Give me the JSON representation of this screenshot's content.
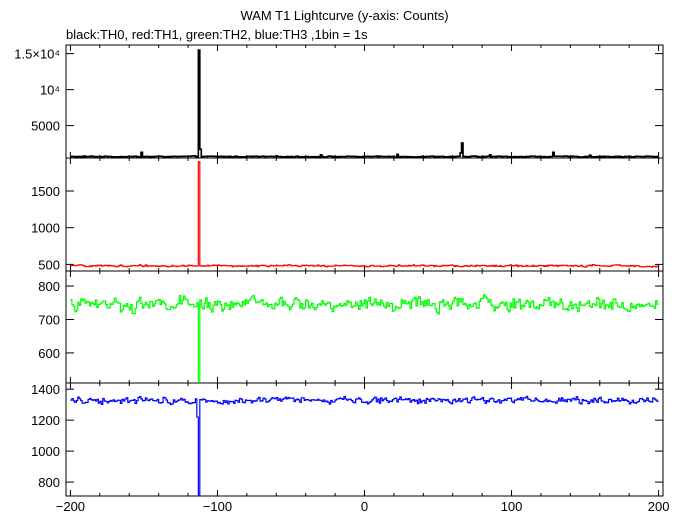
{
  "chart_data": {
    "type": "line",
    "title": "WAM T1 Lightcurve (y-axis: Counts)",
    "subtitle": "black:TH0, red:TH1, green:TH2, blue:TH3 ,1bin = 1s",
    "xlim": [
      -203,
      203
    ],
    "x_ticks": [
      -200,
      -100,
      0,
      100,
      200
    ],
    "x_tick_labels": [
      "−200",
      "−100",
      "0",
      "100",
      "200"
    ],
    "bin_seconds": 1,
    "grid": false,
    "panels": [
      {
        "name": "TH0",
        "color": "#000000",
        "ylim": [
          500,
          16200
        ],
        "y_ticks": [
          5000,
          10000,
          15000
        ],
        "y_tick_labels": [
          "5000",
          "10⁴",
          "1.5×10⁴"
        ],
        "baseline": 700,
        "noise": 90,
        "spikes": [
          {
            "x": -113,
            "y": 15500
          },
          {
            "x": -112,
            "y": 1700
          },
          {
            "x": -152,
            "y": 1300
          },
          {
            "x": 66,
            "y": 2600
          },
          {
            "x": 65,
            "y": 1200
          },
          {
            "x": 128,
            "y": 1300
          },
          {
            "x": 22,
            "y": 1000
          },
          {
            "x": -30,
            "y": 950
          },
          {
            "x": 85,
            "y": 950
          },
          {
            "x": 153,
            "y": 900
          }
        ]
      },
      {
        "name": "TH1",
        "color": "#ff0000",
        "ylim": [
          410,
          1950
        ],
        "y_ticks": [
          500,
          1000,
          1500
        ],
        "y_tick_labels": [
          "500",
          "1000",
          "1500"
        ],
        "baseline": 480,
        "noise": 18,
        "spikes": [
          {
            "x": -113,
            "y": 1900
          }
        ]
      },
      {
        "name": "TH2",
        "color": "#00ff00",
        "ylim": [
          510,
          845
        ],
        "y_ticks": [
          600,
          700,
          800
        ],
        "y_tick_labels": [
          "600",
          "700",
          "800"
        ],
        "baseline": 745,
        "noise": 28,
        "spikes": [
          {
            "x": -113,
            "y": 515
          }
        ]
      },
      {
        "name": "TH3",
        "color": "#0000ff",
        "ylim": [
          710,
          1440
        ],
        "y_ticks": [
          800,
          1000,
          1200,
          1400
        ],
        "y_tick_labels": [
          "800",
          "1000",
          "1200",
          "1400"
        ],
        "baseline": 1330,
        "noise": 30,
        "spikes": [
          {
            "x": -113,
            "y": 715
          },
          {
            "x": -114,
            "y": 1220
          }
        ]
      }
    ]
  }
}
